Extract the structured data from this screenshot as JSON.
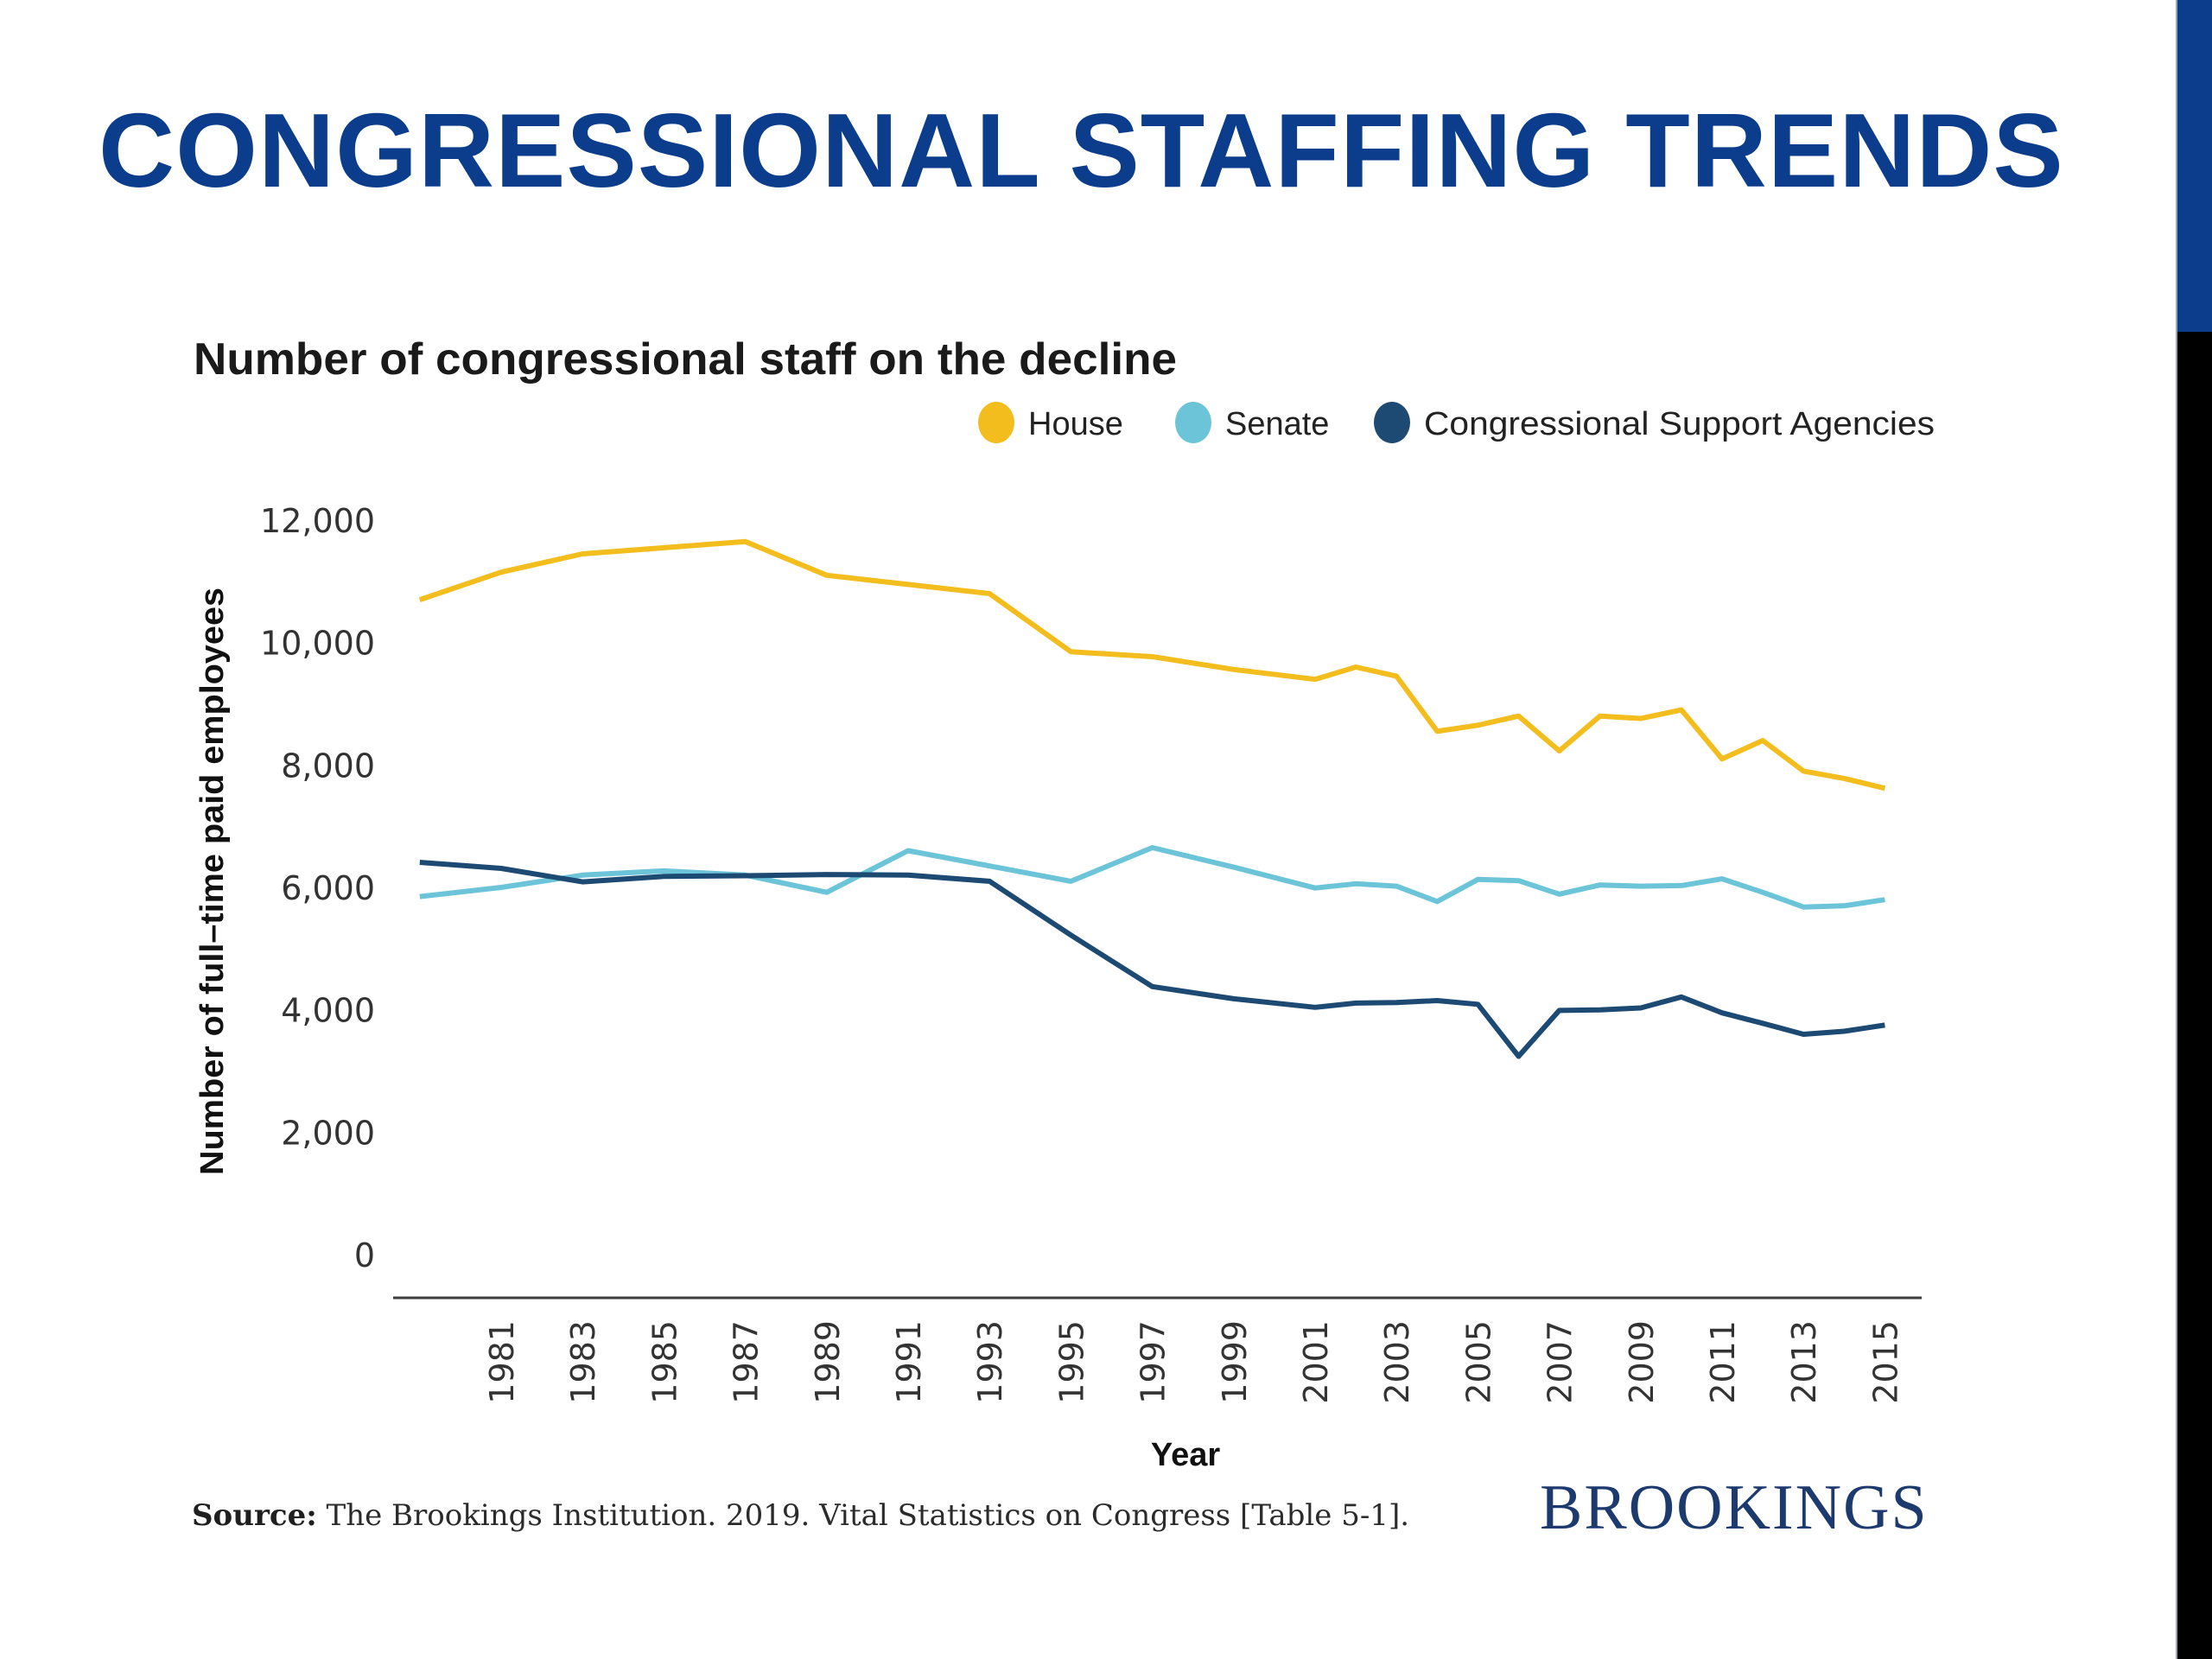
{
  "slide": {
    "title": "CONGRESSIONAL STAFFING TRENDS",
    "accent_colors": {
      "top": "#0b3d8c",
      "bottom": "#000000"
    }
  },
  "chart_data": {
    "type": "line",
    "title": "Number of congressional staff on the decline",
    "xlabel": "Year",
    "ylabel": "Number of full–time paid employees",
    "ylim": [
      0,
      12000
    ],
    "yticks": [
      0,
      2000,
      4000,
      6000,
      8000,
      10000,
      12000
    ],
    "ytick_labels": [
      "0",
      "2,000",
      "4,000",
      "6,000",
      "8,000",
      "10,000",
      "12,000"
    ],
    "xlim": [
      1978.2,
      2016.1
    ],
    "xticks": [
      1981,
      1983,
      1985,
      1987,
      1989,
      1991,
      1993,
      1995,
      1997,
      1999,
      2001,
      2003,
      2005,
      2007,
      2009,
      2011,
      2013,
      2015
    ],
    "xtick_labels": [
      "1981",
      "1983",
      "1985",
      "1987",
      "1989",
      "1991",
      "1993",
      "1995",
      "1997",
      "1999",
      "2001",
      "2003",
      "2005",
      "2007",
      "2009",
      "2011",
      "2013",
      "2015"
    ],
    "grid": false,
    "legend_position": "top-right",
    "x": [
      1979,
      1981,
      1983,
      1985,
      1987,
      1989,
      1991,
      1993,
      1995,
      1997,
      1999,
      2001,
      2002,
      2003,
      2004,
      2005,
      2006,
      2007,
      2008,
      2009,
      2010,
      2011,
      2012,
      2013,
      2014,
      2015
    ],
    "series": [
      {
        "name": "House",
        "color": "#f2bd1d",
        "values": [
          10700,
          11150,
          11450,
          11550,
          11650,
          11100,
          10950,
          10800,
          9850,
          9770,
          9560,
          9400,
          9600,
          9450,
          8550,
          8650,
          8800,
          8230,
          8800,
          8760,
          8900,
          8100,
          8400,
          7900,
          7780,
          7620
        ]
      },
      {
        "name": "Senate",
        "color": "#6cc4d9",
        "values": [
          5850,
          6000,
          6200,
          6270,
          6200,
          5920,
          6600,
          6350,
          6100,
          6650,
          6330,
          5990,
          6060,
          6020,
          5770,
          6130,
          6110,
          5890,
          6040,
          6020,
          6030,
          6140,
          5920,
          5680,
          5700,
          5800
        ]
      },
      {
        "name": "Congressional Support Agencies",
        "color": "#1c4a73",
        "values": [
          6410,
          6310,
          6090,
          6180,
          6190,
          6210,
          6200,
          6100,
          5220,
          4380,
          4180,
          4040,
          4110,
          4120,
          4150,
          4090,
          3240,
          3990,
          4000,
          4030,
          4210,
          3950,
          3780,
          3600,
          3650,
          3750
        ]
      }
    ],
    "source": {
      "label": "Source:",
      "text": " The Brookings Institution. 2019. Vital Statistics on Congress [Table 5-1]."
    },
    "publisher_logo": "BROOKINGS"
  }
}
